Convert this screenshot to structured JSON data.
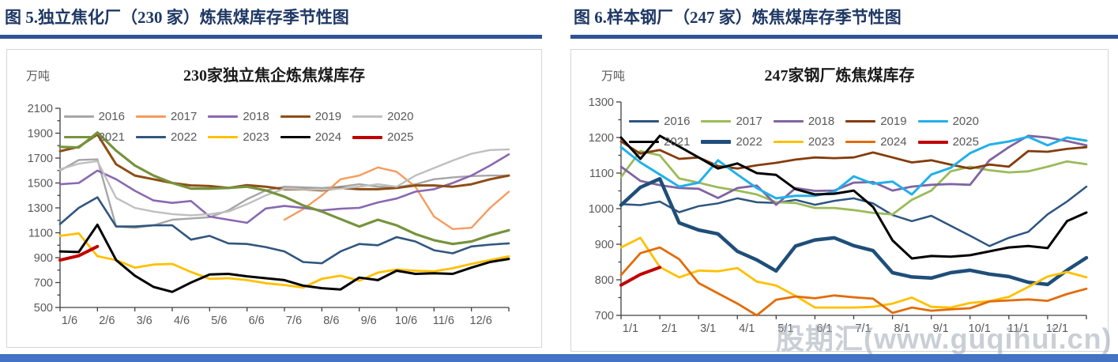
{
  "headers": {
    "left": "图 5.独立焦化厂（230 家）炼焦煤库存季节性图",
    "right": "图 6.样本钢厂（247 家）炼焦煤库存季节性图"
  },
  "watermark": "股期汇(www.guqihui.cn)",
  "colors": {
    "header_text": "#1f3864",
    "header_bar": "#2e5496",
    "bottom_bar": "#4472c4",
    "axis_text": "#595959",
    "box_border": "#d6d6d6"
  },
  "chart_data": [
    {
      "type": "line",
      "title": "230家独立焦企炼焦煤库存",
      "unit_label": "万吨",
      "ylim": [
        500,
        2100
      ],
      "y_ticks": [
        500,
        700,
        900,
        1100,
        1300,
        1500,
        1700,
        1900,
        2100
      ],
      "y_minor_step": 100,
      "x_tick_labels": [
        "1/6",
        "2/6",
        "3/6",
        "4/6",
        "5/6",
        "6/6",
        "7/6",
        "8/6",
        "9/6",
        "10/6",
        "11/6",
        "12/6"
      ],
      "points_per_month": 2,
      "legend_rows": [
        [
          "2016",
          "2017",
          "2018",
          "2019",
          "2020"
        ],
        [
          "2021",
          "2022",
          "2023",
          "2024",
          "2025"
        ]
      ],
      "series": [
        {
          "name": "2016",
          "color": "#a6a6a6",
          "width": 2.4,
          "values": [
            1600,
            1685,
            1690,
            1150,
            1140,
            1160,
            1205,
            1215,
            1225,
            1280,
            1370,
            1440,
            1470,
            1465,
            1460,
            1470,
            1490,
            1470,
            1465,
            1490,
            1530,
            1545,
            1555,
            1560,
            1560
          ]
        },
        {
          "name": "2017",
          "color": "#f79b5d",
          "width": 2.4,
          "values": [
            null,
            null,
            null,
            null,
            null,
            null,
            null,
            null,
            null,
            null,
            null,
            null,
            1205,
            1290,
            1400,
            1530,
            1560,
            1625,
            1590,
            1470,
            1230,
            1130,
            1140,
            1300,
            1430
          ]
        },
        {
          "name": "2018",
          "color": "#8a68b0",
          "width": 2.6,
          "values": [
            1490,
            1500,
            1600,
            1530,
            1437,
            1360,
            1340,
            1355,
            1230,
            1205,
            1180,
            1295,
            1315,
            1300,
            1280,
            1293,
            1300,
            1344,
            1375,
            1430,
            1450,
            1500,
            1560,
            1640,
            1730
          ]
        },
        {
          "name": "2019",
          "color": "#8e4d15",
          "width": 3.0,
          "values": [
            1755,
            1790,
            1890,
            1650,
            1560,
            1530,
            1500,
            1480,
            1475,
            1460,
            1483,
            1470,
            1450,
            1450,
            1440,
            1460,
            1450,
            1450,
            1460,
            1480,
            1480,
            1470,
            1490,
            1530,
            1560
          ]
        },
        {
          "name": "2020",
          "color": "#bfbfbf",
          "width": 2.4,
          "values": [
            1610,
            1655,
            1675,
            1380,
            1300,
            1270,
            1250,
            1240,
            1250,
            1270,
            1330,
            1400,
            1455,
            1450,
            1445,
            1455,
            1470,
            1490,
            1470,
            1560,
            1620,
            1680,
            1735,
            1765,
            1770
          ]
        },
        {
          "name": "2021",
          "color": "#76933c",
          "width": 3.2,
          "values": [
            1790,
            1785,
            1905,
            1760,
            1640,
            1560,
            1500,
            1455,
            1455,
            1460,
            1470,
            1440,
            1390,
            1320,
            1270,
            1210,
            1150,
            1205,
            1160,
            1090,
            1040,
            1010,
            1030,
            1080,
            1120
          ]
        },
        {
          "name": "2022",
          "color": "#31567f",
          "width": 2.6,
          "values": [
            1170,
            1300,
            1385,
            1150,
            1150,
            1160,
            1160,
            1045,
            1075,
            1015,
            1010,
            985,
            950,
            865,
            855,
            950,
            1010,
            1000,
            1065,
            1030,
            960,
            935,
            990,
            1005,
            1015
          ]
        },
        {
          "name": "2023",
          "color": "#ffc000",
          "width": 2.8,
          "values": [
            1075,
            1095,
            912,
            880,
            820,
            845,
            850,
            785,
            730,
            735,
            720,
            695,
            680,
            660,
            730,
            755,
            715,
            780,
            805,
            795,
            790,
            815,
            850,
            880,
            910
          ]
        },
        {
          "name": "2024",
          "color": "#000000",
          "width": 3.0,
          "values": [
            950,
            945,
            1165,
            880,
            755,
            665,
            625,
            700,
            765,
            770,
            750,
            735,
            720,
            675,
            655,
            645,
            740,
            720,
            795,
            770,
            775,
            770,
            820,
            865,
            890
          ]
        },
        {
          "name": "2025",
          "color": "#c00000",
          "width": 4.0,
          "values": [
            880,
            915,
            990,
            null,
            null,
            null,
            null,
            null,
            null,
            null,
            null,
            null,
            null,
            null,
            null,
            null,
            null,
            null,
            null,
            null,
            null,
            null,
            null,
            null,
            null
          ]
        }
      ]
    },
    {
      "type": "line",
      "title": "247家钢厂炼焦煤库存",
      "unit_label": "万吨",
      "ylim": [
        700,
        1300
      ],
      "y_ticks": [
        700,
        800,
        900,
        1000,
        1100,
        1200,
        1300
      ],
      "y_minor_step": 50,
      "x_tick_labels": [
        "1/1",
        "2/1",
        "3/1",
        "4/1",
        "5/1",
        "6/1",
        "7/1",
        "8/1",
        "9/1",
        "10/1",
        "11/1",
        "12/1"
      ],
      "points_per_month": 2,
      "legend_rows": [
        [
          "2016",
          "2017",
          "2018",
          "2019",
          "2020"
        ],
        [
          "2021",
          "2022",
          "2023",
          "2024",
          "2025"
        ]
      ],
      "series": [
        {
          "name": "2016",
          "color": "#2e5581",
          "width": 2.5,
          "values": [
            1013,
            1010,
            1020,
            990,
            1007,
            1015,
            1029,
            1018,
            1016,
            1025,
            1011,
            1022,
            1029,
            1015,
            982,
            965,
            980,
            952,
            924,
            895,
            918,
            935,
            984,
            1020,
            1062
          ]
        },
        {
          "name": "2017",
          "color": "#9bbb59",
          "width": 2.8,
          "values": [
            1089,
            1162,
            1150,
            1085,
            1073,
            1060,
            1051,
            1040,
            1018,
            1016,
            1002,
            1002,
            996,
            988,
            984,
            1025,
            1051,
            1105,
            1118,
            1108,
            1102,
            1105,
            1118,
            1133,
            1125
          ]
        },
        {
          "name": "2018",
          "color": "#8064a2",
          "width": 2.8,
          "values": [
            1118,
            1078,
            1066,
            1058,
            1056,
            1030,
            1058,
            1065,
            1011,
            1058,
            1050,
            1051,
            1073,
            1075,
            1051,
            1062,
            1067,
            1069,
            1067,
            1136,
            1173,
            1205,
            1200,
            1190,
            1178
          ]
        },
        {
          "name": "2019",
          "color": "#843c0c",
          "width": 2.8,
          "values": [
            1189,
            1155,
            1165,
            1140,
            1144,
            1120,
            1113,
            1122,
            1129,
            1138,
            1144,
            1142,
            1144,
            1158,
            1144,
            1130,
            1136,
            1124,
            1113,
            1124,
            1118,
            1162,
            1160,
            1168,
            1173
          ]
        },
        {
          "name": "2020",
          "color": "#22b0ea",
          "width": 3.0,
          "values": [
            1173,
            1130,
            1096,
            1062,
            1073,
            1136,
            1096,
            1058,
            1029,
            1036,
            1036,
            1047,
            1091,
            1070,
            1076,
            1040,
            1096,
            1115,
            1156,
            1180,
            1189,
            1202,
            1178,
            1200,
            1191
          ]
        },
        {
          "name": "2021",
          "color": "#000000",
          "width": 3.0,
          "values": [
            1200,
            1140,
            1205,
            1175,
            1144,
            1113,
            1127,
            1100,
            1095,
            1055,
            1040,
            1042,
            1051,
            1005,
            911,
            860,
            867,
            865,
            869,
            880,
            891,
            895,
            889,
            965,
            989
          ]
        },
        {
          "name": "2022",
          "color": "#1f4e79",
          "width": 4.5,
          "values": [
            1010,
            1060,
            1084,
            960,
            940,
            929,
            880,
            856,
            825,
            895,
            912,
            918,
            896,
            882,
            820,
            808,
            805,
            820,
            827,
            816,
            809,
            793,
            787,
            827,
            862
          ]
        },
        {
          "name": "2023",
          "color": "#ffc000",
          "width": 2.8,
          "values": [
            891,
            918,
            836,
            807,
            826,
            824,
            833,
            795,
            784,
            755,
            722,
            722,
            722,
            724,
            733,
            750,
            724,
            722,
            735,
            740,
            752,
            780,
            809,
            822,
            807
          ]
        },
        {
          "name": "2024",
          "color": "#e36c09",
          "width": 2.8,
          "values": [
            813,
            875,
            891,
            858,
            791,
            762,
            733,
            700,
            744,
            753,
            748,
            756,
            751,
            747,
            707,
            722,
            713,
            717,
            720,
            739,
            742,
            745,
            741,
            760,
            775
          ]
        },
        {
          "name": "2025",
          "color": "#c00000",
          "width": 4.0,
          "values": [
            785,
            815,
            835,
            null,
            null,
            null,
            null,
            null,
            null,
            null,
            null,
            null,
            null,
            null,
            null,
            null,
            null,
            null,
            null,
            null,
            null,
            null,
            null,
            null,
            null
          ]
        }
      ]
    }
  ]
}
